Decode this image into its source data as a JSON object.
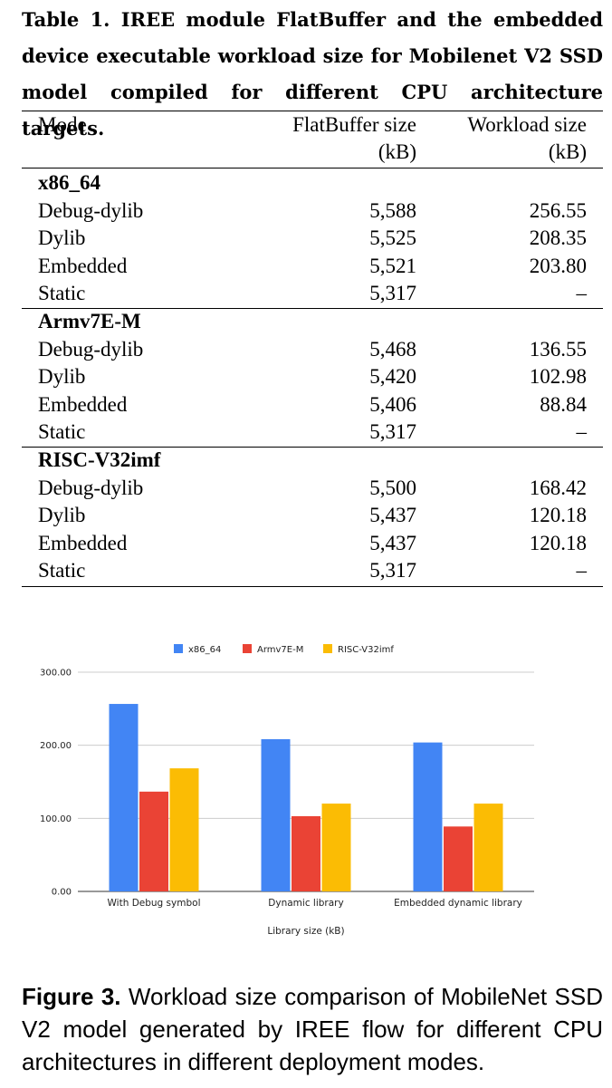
{
  "table": {
    "caption": "Table 1. IREE module FlatBuffer and the embedded device executable workload size for Mobilenet V2 SSD model compiled for different CPU architecture targets.",
    "headers": {
      "mode": "Mode",
      "flatbuffer_line1": "FlatBuffer size",
      "flatbuffer_line2": "(kB)",
      "workload_line1": "Workload size",
      "workload_line2": "(kB)"
    },
    "groups": [
      {
        "name": "x86_64",
        "rows": [
          {
            "mode": "Debug-dylib",
            "flatbuffer": "5,588",
            "workload": "256.55"
          },
          {
            "mode": "Dylib",
            "flatbuffer": "5,525",
            "workload": "208.35"
          },
          {
            "mode": "Embedded",
            "flatbuffer": "5,521",
            "workload": "203.80"
          },
          {
            "mode": "Static",
            "flatbuffer": "5,317",
            "workload": "–"
          }
        ]
      },
      {
        "name": "Armv7E-M",
        "rows": [
          {
            "mode": "Debug-dylib",
            "flatbuffer": "5,468",
            "workload": "136.55"
          },
          {
            "mode": "Dylib",
            "flatbuffer": "5,420",
            "workload": "102.98"
          },
          {
            "mode": "Embedded",
            "flatbuffer": "5,406",
            "workload": "88.84"
          },
          {
            "mode": "Static",
            "flatbuffer": "5,317",
            "workload": "–"
          }
        ]
      },
      {
        "name": "RISC-V32imf",
        "rows": [
          {
            "mode": "Debug-dylib",
            "flatbuffer": "5,500",
            "workload": "168.42"
          },
          {
            "mode": "Dylib",
            "flatbuffer": "5,437",
            "workload": "120.18"
          },
          {
            "mode": "Embedded",
            "flatbuffer": "5,437",
            "workload": "120.18"
          },
          {
            "mode": "Static",
            "flatbuffer": "5,317",
            "workload": "–"
          }
        ]
      }
    ]
  },
  "chart_data": {
    "type": "bar",
    "categories": [
      "With Debug symbol",
      "Dynamic library",
      "Embedded dynamic library"
    ],
    "series": [
      {
        "name": "x86_64",
        "color": "#4285f4",
        "values": [
          256.55,
          208.35,
          203.8
        ]
      },
      {
        "name": "Armv7E-M",
        "color": "#ea4335",
        "values": [
          136.55,
          102.98,
          88.84
        ]
      },
      {
        "name": "RISC-V32imf",
        "color": "#fbbc04",
        "values": [
          168.42,
          120.18,
          120.18
        ]
      }
    ],
    "title": "",
    "xlabel": "Library size (kB)",
    "ylabel": "",
    "ylim": [
      0,
      300
    ],
    "yticks": [
      "0.00",
      "100.00",
      "200.00",
      "300.00"
    ],
    "grid": true,
    "legend_position": "top"
  },
  "figure_caption": {
    "label": "Figure 3.",
    "text": " Workload size comparison of MobileNet SSD V2 model generated by IREE flow for different CPU architectures in different deployment modes."
  }
}
